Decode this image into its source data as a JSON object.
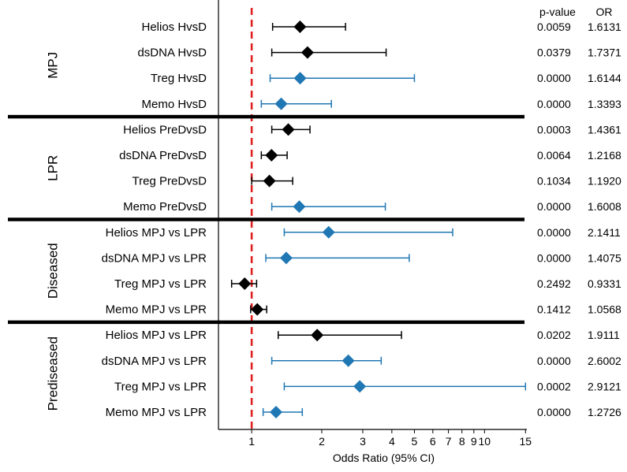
{
  "chart_data": {
    "type": "forest",
    "xlabel": "Odds Ratio (95% CI)",
    "x_scale": "log",
    "xlim": [
      0.72,
      15.2
    ],
    "reference_line": 1,
    "x_ticks": [
      1,
      2,
      3,
      4,
      5,
      6,
      7,
      8,
      9,
      10,
      15
    ],
    "x_tick_labels": [
      "1",
      "2",
      "3",
      "4",
      "5",
      "6",
      "7",
      "8",
      "9",
      "10",
      "15"
    ],
    "headers": {
      "pvalue": "p-value",
      "or": "OR"
    },
    "colors": {
      "black": "#000000",
      "blue": "#1f77b4",
      "refline": "#e02020"
    },
    "groups": [
      {
        "label": "MPJ",
        "rows": [
          {
            "label": "Helios HvsD",
            "or": 1.6131,
            "lo": 1.23,
            "hi": 2.53,
            "p": "0.0059",
            "or_text": "1.6131",
            "color": "black"
          },
          {
            "label": "dsDNA HvsD",
            "or": 1.7371,
            "lo": 1.22,
            "hi": 3.78,
            "p": "0.0379",
            "or_text": "1.7371",
            "color": "black"
          },
          {
            "label": "Treg HvsD",
            "or": 1.6144,
            "lo": 1.2,
            "hi": 5.0,
            "p": "0.0000",
            "or_text": "1.6144",
            "color": "blue"
          },
          {
            "label": "Memo HvsD",
            "or": 1.3393,
            "lo": 1.1,
            "hi": 2.2,
            "p": "0.0000",
            "or_text": "1.3393",
            "color": "blue"
          }
        ]
      },
      {
        "label": "LPR",
        "rows": [
          {
            "label": "Helios PreDvsD",
            "or": 1.4361,
            "lo": 1.22,
            "hi": 1.78,
            "p": "0.0003",
            "or_text": "1.4361",
            "color": "black"
          },
          {
            "label": "dsDNA PreDvsD",
            "or": 1.2168,
            "lo": 1.1,
            "hi": 1.42,
            "p": "0.0064",
            "or_text": "1.2168",
            "color": "black"
          },
          {
            "label": "Treg  PreDvsD",
            "or": 1.192,
            "lo": 1.0,
            "hi": 1.5,
            "p": "0.1034",
            "or_text": "1.1920",
            "color": "black"
          },
          {
            "label": "Memo PreDvsD",
            "or": 1.6008,
            "lo": 1.22,
            "hi": 3.75,
            "p": "0.0000",
            "or_text": "1.6008",
            "color": "blue"
          }
        ]
      },
      {
        "label": "Diseased",
        "rows": [
          {
            "label": "Helios MPJ vs LPR",
            "or": 2.1411,
            "lo": 1.38,
            "hi": 7.3,
            "p": "0.0000",
            "or_text": "2.1411",
            "color": "blue"
          },
          {
            "label": "dsDNA MPJ vs LPR",
            "or": 1.4075,
            "lo": 1.15,
            "hi": 4.75,
            "p": "0.0000",
            "or_text": "1.4075",
            "color": "blue"
          },
          {
            "label": "Treg MPJ vs LPR",
            "or": 0.9331,
            "lo": 0.82,
            "hi": 1.05,
            "p": "0.2492",
            "or_text": "0.9331",
            "color": "black"
          },
          {
            "label": "Memo MPJ vs LPR",
            "or": 1.0568,
            "lo": 0.99,
            "hi": 1.16,
            "p": "0.1412",
            "or_text": "1.0568",
            "color": "black"
          }
        ]
      },
      {
        "label": "Prediseased",
        "rows": [
          {
            "label": "Helios MPJ vs LPR",
            "or": 1.9111,
            "lo": 1.3,
            "hi": 4.4,
            "p": "0.0202",
            "or_text": "1.9111",
            "color": "black"
          },
          {
            "label": "dsDNA MPJ vs LPR",
            "or": 2.6002,
            "lo": 1.22,
            "hi": 3.6,
            "p": "0.0000",
            "or_text": "2.6002",
            "color": "blue"
          },
          {
            "label": "Treg MPJ vs LPR",
            "or": 2.9121,
            "lo": 1.38,
            "hi": 15.0,
            "p": "0.0002",
            "or_text": "2.9121",
            "color": "blue"
          },
          {
            "label": "Memo MPJ vs LPR",
            "or": 1.2726,
            "lo": 1.12,
            "hi": 1.65,
            "p": "0.0000",
            "or_text": "1.2726",
            "color": "blue"
          }
        ]
      }
    ]
  }
}
